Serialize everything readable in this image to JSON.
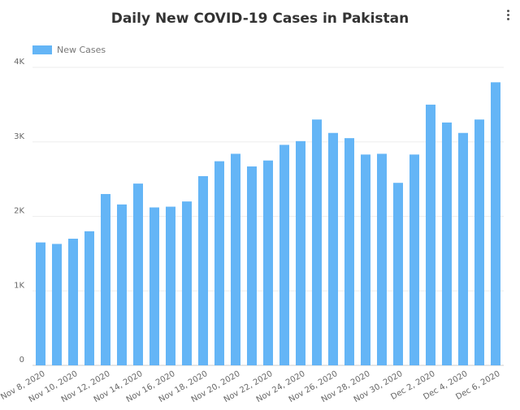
{
  "chart_data": {
    "type": "bar",
    "title": "Daily New COVID-19 Cases in Pakistan",
    "legend": "New Cases",
    "legend_position": "top-left",
    "color": "#64b5f6",
    "categories": [
      "Nov 8, 2020",
      "Nov 9, 2020",
      "Nov 10, 2020",
      "Nov 11, 2020",
      "Nov 12, 2020",
      "Nov 13, 2020",
      "Nov 14, 2020",
      "Nov 15, 2020",
      "Nov 16, 2020",
      "Nov 17, 2020",
      "Nov 18, 2020",
      "Nov 19, 2020",
      "Nov 20, 2020",
      "Nov 21, 2020",
      "Nov 22, 2020",
      "Nov 23, 2020",
      "Nov 24, 2020",
      "Nov 25, 2020",
      "Nov 26, 2020",
      "Nov 27, 2020",
      "Nov 28, 2020",
      "Nov 29, 2020",
      "Nov 30, 2020",
      "Dec 1, 2020",
      "Dec 2, 2020",
      "Dec 3, 2020",
      "Dec 4, 2020",
      "Dec 5, 2020",
      "Dec 6, 2020"
    ],
    "tick_labels": [
      "Nov 8, 2020",
      "",
      "Nov 10, 2020",
      "",
      "Nov 12, 2020",
      "",
      "Nov 14, 2020",
      "",
      "Nov 16, 2020",
      "",
      "Nov 18, 2020",
      "",
      "Nov 20, 2020",
      "",
      "Nov 22, 2020",
      "",
      "Nov 24, 2020",
      "",
      "Nov 26, 2020",
      "",
      "Nov 28, 2020",
      "",
      "Nov 30, 2020",
      "",
      "Dec 2, 2020",
      "",
      "Dec 4, 2020",
      "",
      "Dec 6, 2020"
    ],
    "values": [
      1650,
      1630,
      1700,
      1800,
      2300,
      2160,
      2440,
      2120,
      2130,
      2200,
      2540,
      2740,
      2840,
      2670,
      2750,
      2960,
      3010,
      3300,
      3120,
      3050,
      2830,
      2840,
      2450,
      2830,
      3500,
      3260,
      3120,
      3300,
      3800
    ],
    "ylim": [
      0,
      4000
    ],
    "yticks": [
      {
        "v": 0,
        "label": "0"
      },
      {
        "v": 1000,
        "label": "1K"
      },
      {
        "v": 2000,
        "label": "2K"
      },
      {
        "v": 3000,
        "label": "3K"
      },
      {
        "v": 4000,
        "label": "4K"
      }
    ],
    "grid": true
  }
}
